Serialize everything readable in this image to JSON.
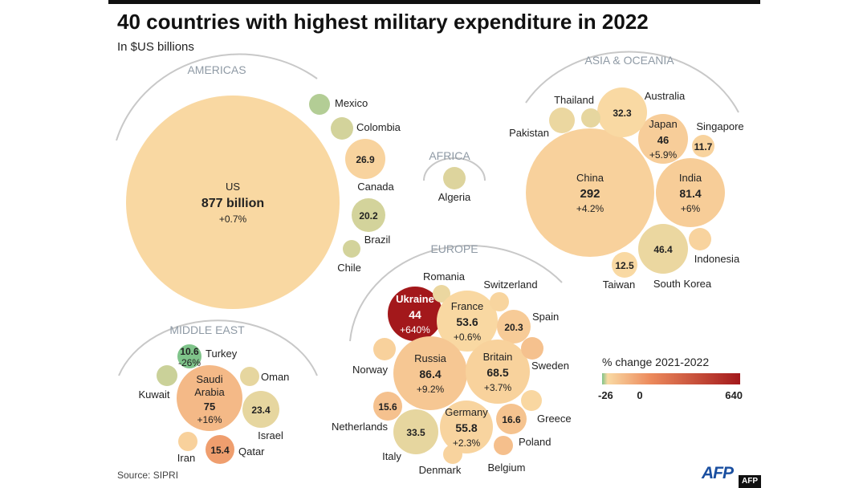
{
  "title": "40 countries with highest military expenditure in 2022",
  "subtitle": "In $US billions",
  "source": "Source: SIPRI",
  "credit": {
    "logo": "AFP",
    "tag": "AFP"
  },
  "chart_data": {
    "type": "bubble",
    "title": "40 countries with highest military expenditure in 2022",
    "unit": "$US billions",
    "regions": [
      "AMERICAS",
      "AFRICA",
      "ASIA & OCEANIA",
      "MIDDLE EAST",
      "EUROPE"
    ],
    "countries": [
      {
        "name": "US",
        "region": "AMERICAS",
        "label": "877 billion",
        "spend": 877,
        "change_label": "+0.7%",
        "change": 0.7
      },
      {
        "name": "Mexico",
        "region": "AMERICAS",
        "change": -15
      },
      {
        "name": "Colombia",
        "region": "AMERICAS",
        "change": -8
      },
      {
        "name": "Canada",
        "region": "AMERICAS",
        "label": "26.9",
        "spend": 26.9,
        "change": 3
      },
      {
        "name": "Brazil",
        "region": "AMERICAS",
        "label": "20.2",
        "spend": 20.2,
        "change": -8
      },
      {
        "name": "Chile",
        "region": "AMERICAS",
        "change": -8
      },
      {
        "name": "Algeria",
        "region": "AFRICA",
        "change": -6
      },
      {
        "name": "China",
        "region": "ASIA & OCEANIA",
        "label": "292",
        "spend": 292,
        "change_label": "+4.2%",
        "change": 4.2
      },
      {
        "name": "Japan",
        "region": "ASIA & OCEANIA",
        "label": "46",
        "spend": 46,
        "change_label": "+5.9%",
        "change": 5.9
      },
      {
        "name": "India",
        "region": "ASIA & OCEANIA",
        "label": "81.4",
        "spend": 81.4,
        "change_label": "+6%",
        "change": 6
      },
      {
        "name": "Australia",
        "region": "ASIA & OCEANIA",
        "label": "32.3",
        "spend": 32.3,
        "change": 0
      },
      {
        "name": "Thailand",
        "region": "ASIA & OCEANIA",
        "change": -4
      },
      {
        "name": "Pakistan",
        "region": "ASIA & OCEANIA",
        "change": -3
      },
      {
        "name": "Singapore",
        "region": "ASIA & OCEANIA",
        "label": "11.7",
        "spend": 11.7,
        "change": 3
      },
      {
        "name": "Indonesia",
        "region": "ASIA & OCEANIA",
        "change": 3
      },
      {
        "name": "South Korea",
        "region": "ASIA & OCEANIA",
        "label": "46.4",
        "spend": 46.4,
        "change": -3
      },
      {
        "name": "Taiwan",
        "region": "ASIA & OCEANIA",
        "label": "12.5",
        "spend": 12.5,
        "change": 0
      },
      {
        "name": "Saudi Arabia",
        "region": "MIDDLE EAST",
        "label": "75",
        "spend": 75,
        "change_label": "+16%",
        "change": 16
      },
      {
        "name": "Turkey",
        "region": "MIDDLE EAST",
        "label": "10.6",
        "spend": 10.6,
        "change_label": "-26%",
        "change": -26
      },
      {
        "name": "Kuwait",
        "region": "MIDDLE EAST",
        "change": -10
      },
      {
        "name": "Oman",
        "region": "MIDDLE EAST",
        "change": -4
      },
      {
        "name": "Israel",
        "region": "MIDDLE EAST",
        "label": "23.4",
        "spend": 23.4,
        "change": -4
      },
      {
        "name": "Iran",
        "region": "MIDDLE EAST",
        "change": 4
      },
      {
        "name": "Qatar",
        "region": "MIDDLE EAST",
        "label": "15.4",
        "spend": 15.4,
        "change": 30
      },
      {
        "name": "Ukraine",
        "region": "EUROPE",
        "label": "44",
        "spend": 44,
        "change_label": "+640%",
        "change": 640
      },
      {
        "name": "Romania",
        "region": "EUROPE",
        "change": -3
      },
      {
        "name": "France",
        "region": "EUROPE",
        "label": "53.6",
        "spend": 53.6,
        "change_label": "+0.6%",
        "change": 0.6
      },
      {
        "name": "Switzerland",
        "region": "EUROPE",
        "change": 2
      },
      {
        "name": "Spain",
        "region": "EUROPE",
        "label": "20.3",
        "spend": 20.3,
        "change": 7
      },
      {
        "name": "Russia",
        "region": "EUROPE",
        "label": "86.4",
        "spend": 86.4,
        "change_label": "+9.2%",
        "change": 9.2
      },
      {
        "name": "Britain",
        "region": "EUROPE",
        "label": "68.5",
        "spend": 68.5,
        "change_label": "+3.7%",
        "change": 3.7
      },
      {
        "name": "Norway",
        "region": "EUROPE",
        "change": 4
      },
      {
        "name": "Sweden",
        "region": "EUROPE",
        "change": 12
      },
      {
        "name": "Netherlands",
        "region": "EUROPE",
        "label": "15.6",
        "spend": 15.6,
        "change": 12
      },
      {
        "name": "Germany",
        "region": "EUROPE",
        "label": "55.8",
        "spend": 55.8,
        "change_label": "+2.3%",
        "change": 2.3
      },
      {
        "name": "Greece",
        "region": "EUROPE",
        "change": 1
      },
      {
        "name": "Italy",
        "region": "EUROPE",
        "label": "33.5",
        "spend": 33.5,
        "change": -4
      },
      {
        "name": "Poland",
        "region": "EUROPE",
        "label": "16.6",
        "spend": 16.6,
        "change": 11
      },
      {
        "name": "Denmark",
        "region": "EUROPE",
        "change": 3
      },
      {
        "name": "Belgium",
        "region": "EUROPE",
        "change": 13
      }
    ],
    "legend": {
      "title": "% change 2021-2022",
      "ticks": [
        "-26",
        "0",
        "640"
      ],
      "min": -26,
      "max": 640,
      "colors": {
        "low": "#7fc48a",
        "zero": "#f9d9a3",
        "mid": "#ec8a5c",
        "high": "#a3181b"
      }
    }
  }
}
